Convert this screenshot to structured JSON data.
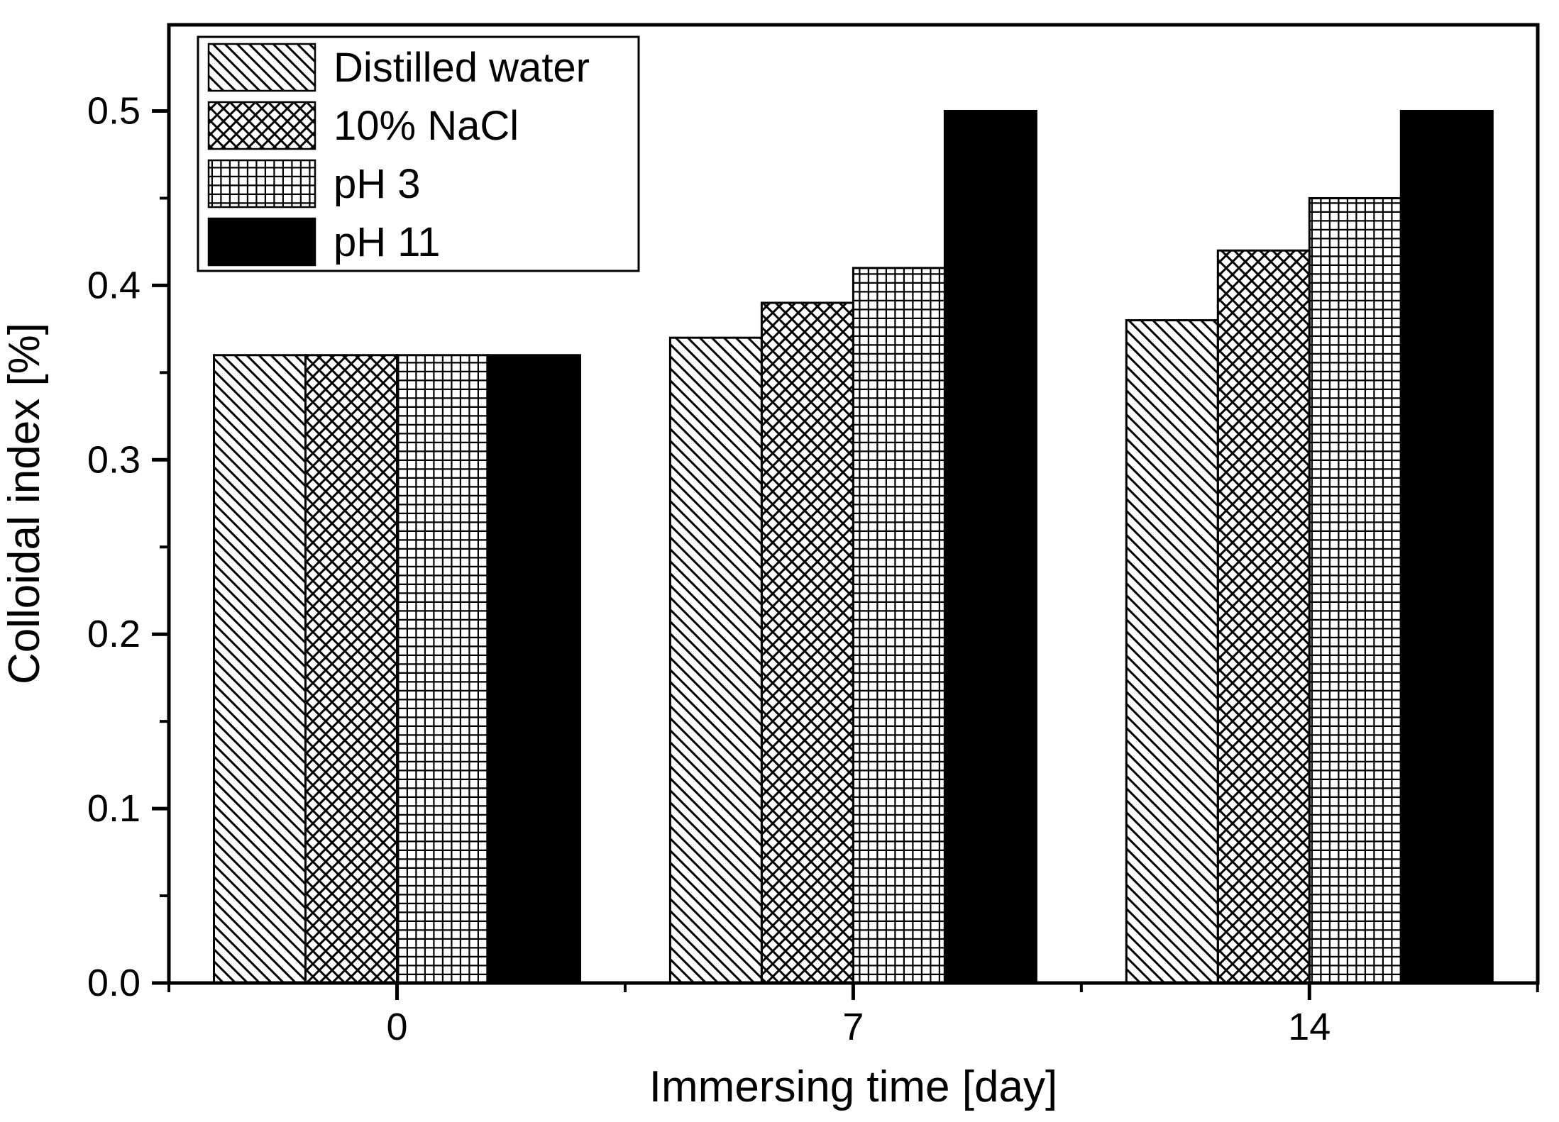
{
  "figure": {
    "background": "#ffffff"
  },
  "chart_data": {
    "type": "bar",
    "title": "",
    "xlabel": "Immersing time [day]",
    "ylabel": "Colloidal index [%]",
    "categories": [
      "0",
      "7",
      "14"
    ],
    "series": [
      {
        "name": "Distilled water",
        "pattern": "diagonal",
        "values": [
          0.36,
          0.37,
          0.38
        ]
      },
      {
        "name": "10% NaCl",
        "pattern": "crosshatch",
        "values": [
          0.36,
          0.39,
          0.42
        ]
      },
      {
        "name": "pH 3",
        "pattern": "grid",
        "values": [
          0.36,
          0.41,
          0.45
        ]
      },
      {
        "name": "pH 11",
        "pattern": "solid",
        "values": [
          0.36,
          0.5,
          0.5
        ]
      }
    ],
    "ylim": [
      0.0,
      0.55
    ],
    "yticks": [
      0.0,
      0.1,
      0.2,
      0.3,
      0.4,
      0.5
    ],
    "ytick_labels": [
      "0.0",
      "0.1",
      "0.2",
      "0.3",
      "0.4",
      "0.5"
    ],
    "ytick_minor_step": 0.05,
    "grid": false,
    "legend": {
      "position": "top-left",
      "entries": [
        "Distilled water",
        "10% NaCl",
        "pH 3",
        "pH 11"
      ]
    },
    "colors": {
      "ink": "#000000",
      "background": "#ffffff"
    }
  }
}
